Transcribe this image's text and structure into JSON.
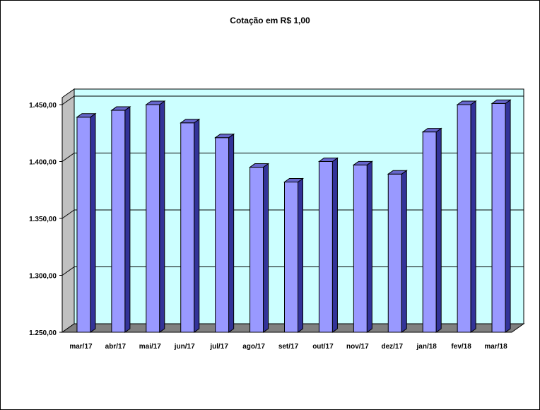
{
  "chart_data": {
    "type": "bar",
    "title": "Cotação em R$ 1,00",
    "categories": [
      "mar/17",
      "abr/17",
      "mai/17",
      "jun/17",
      "jul/17",
      "ago/17",
      "set/17",
      "out/17",
      "nov/17",
      "dez/17",
      "jan/18",
      "fev/18",
      "mar/18"
    ],
    "values": [
      1439,
      1445,
      1450,
      1434,
      1421,
      1395,
      1382,
      1400,
      1397,
      1389,
      1426,
      1450,
      1451
    ],
    "ylim": [
      1250,
      1450
    ],
    "yticks": [
      1250,
      1300,
      1350,
      1400,
      1450
    ],
    "ytick_labels": [
      "1.250,00",
      "1.300,00",
      "1.350,00",
      "1.400,00",
      "1.450,00"
    ],
    "grid": true,
    "style": "3d-columns",
    "colors": {
      "bar_front": "#9999ff",
      "bar_side": "#333399",
      "bar_top": "#6666cc",
      "wall": "#ccffff",
      "side_wall": "#c0c0c0",
      "floor": "#808080",
      "grid": "#000000"
    }
  }
}
